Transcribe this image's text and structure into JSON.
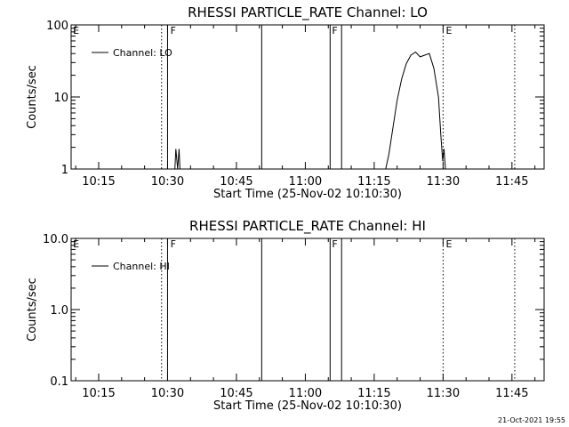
{
  "footer": {
    "timestamp": "21-Oct-2021 19:55"
  },
  "chart_data": [
    {
      "type": "line",
      "title": "RHESSI PARTICLE_RATE Channel: LO",
      "xlabel": "Start Time (25-Nov-02 10:10:30)",
      "ylabel": "Counts/sec",
      "yscale": "log",
      "xlim": [
        "10:09",
        "11:52"
      ],
      "ylim": [
        1,
        100
      ],
      "xticks": [
        "10:15",
        "10:30",
        "10:45",
        "11:00",
        "11:15",
        "11:30",
        "11:45"
      ],
      "yticks": [
        "1",
        "10",
        "100"
      ],
      "legend": {
        "label": "Channel: LO",
        "placement": "top-left"
      },
      "flags": [
        "E",
        "F",
        "F",
        "E"
      ],
      "series": [
        {
          "name": "Channel: LO",
          "segments": [
            {
              "x": [
                "10:31.6",
                "10:31.8",
                "10:32.2",
                "10:32.5",
                "10:32.7"
              ],
              "y": [
                1,
                1.9,
                1,
                1.9,
                1
              ]
            },
            {
              "x": [
                "11:17.5",
                "11:18.2",
                "11:19.0",
                "11:20.0",
                "11:21.0",
                "11:22.0",
                "11:23.0",
                "11:24.0",
                "11:25.0",
                "11:26.0",
                "11:27.0",
                "11:28.0",
                "11:29.0",
                "11:29.5",
                "11:29.9",
                "11:30.2",
                "11:30.5"
              ],
              "y": [
                1,
                1.6,
                3.5,
                9,
                18,
                29,
                38,
                42,
                36,
                38,
                40,
                25,
                10,
                3,
                1.3,
                1.9,
                1
              ]
            }
          ]
        }
      ]
    },
    {
      "type": "line",
      "title": "RHESSI PARTICLE_RATE Channel: HI",
      "xlabel": "Start Time (25-Nov-02 10:10:30)",
      "ylabel": "Counts/sec",
      "yscale": "log",
      "xlim": [
        "10:09",
        "11:52"
      ],
      "ylim": [
        0.1,
        10
      ],
      "xticks": [
        "10:15",
        "10:30",
        "10:45",
        "11:00",
        "11:15",
        "11:30",
        "11:45"
      ],
      "yticks": [
        "0.1",
        "1.0",
        "10.0"
      ],
      "legend": {
        "label": "Channel: HI",
        "placement": "top-left"
      },
      "flags": [
        "E",
        "F",
        "F",
        "E"
      ],
      "series": [
        {
          "name": "Channel: HI",
          "segments": []
        }
      ]
    }
  ]
}
